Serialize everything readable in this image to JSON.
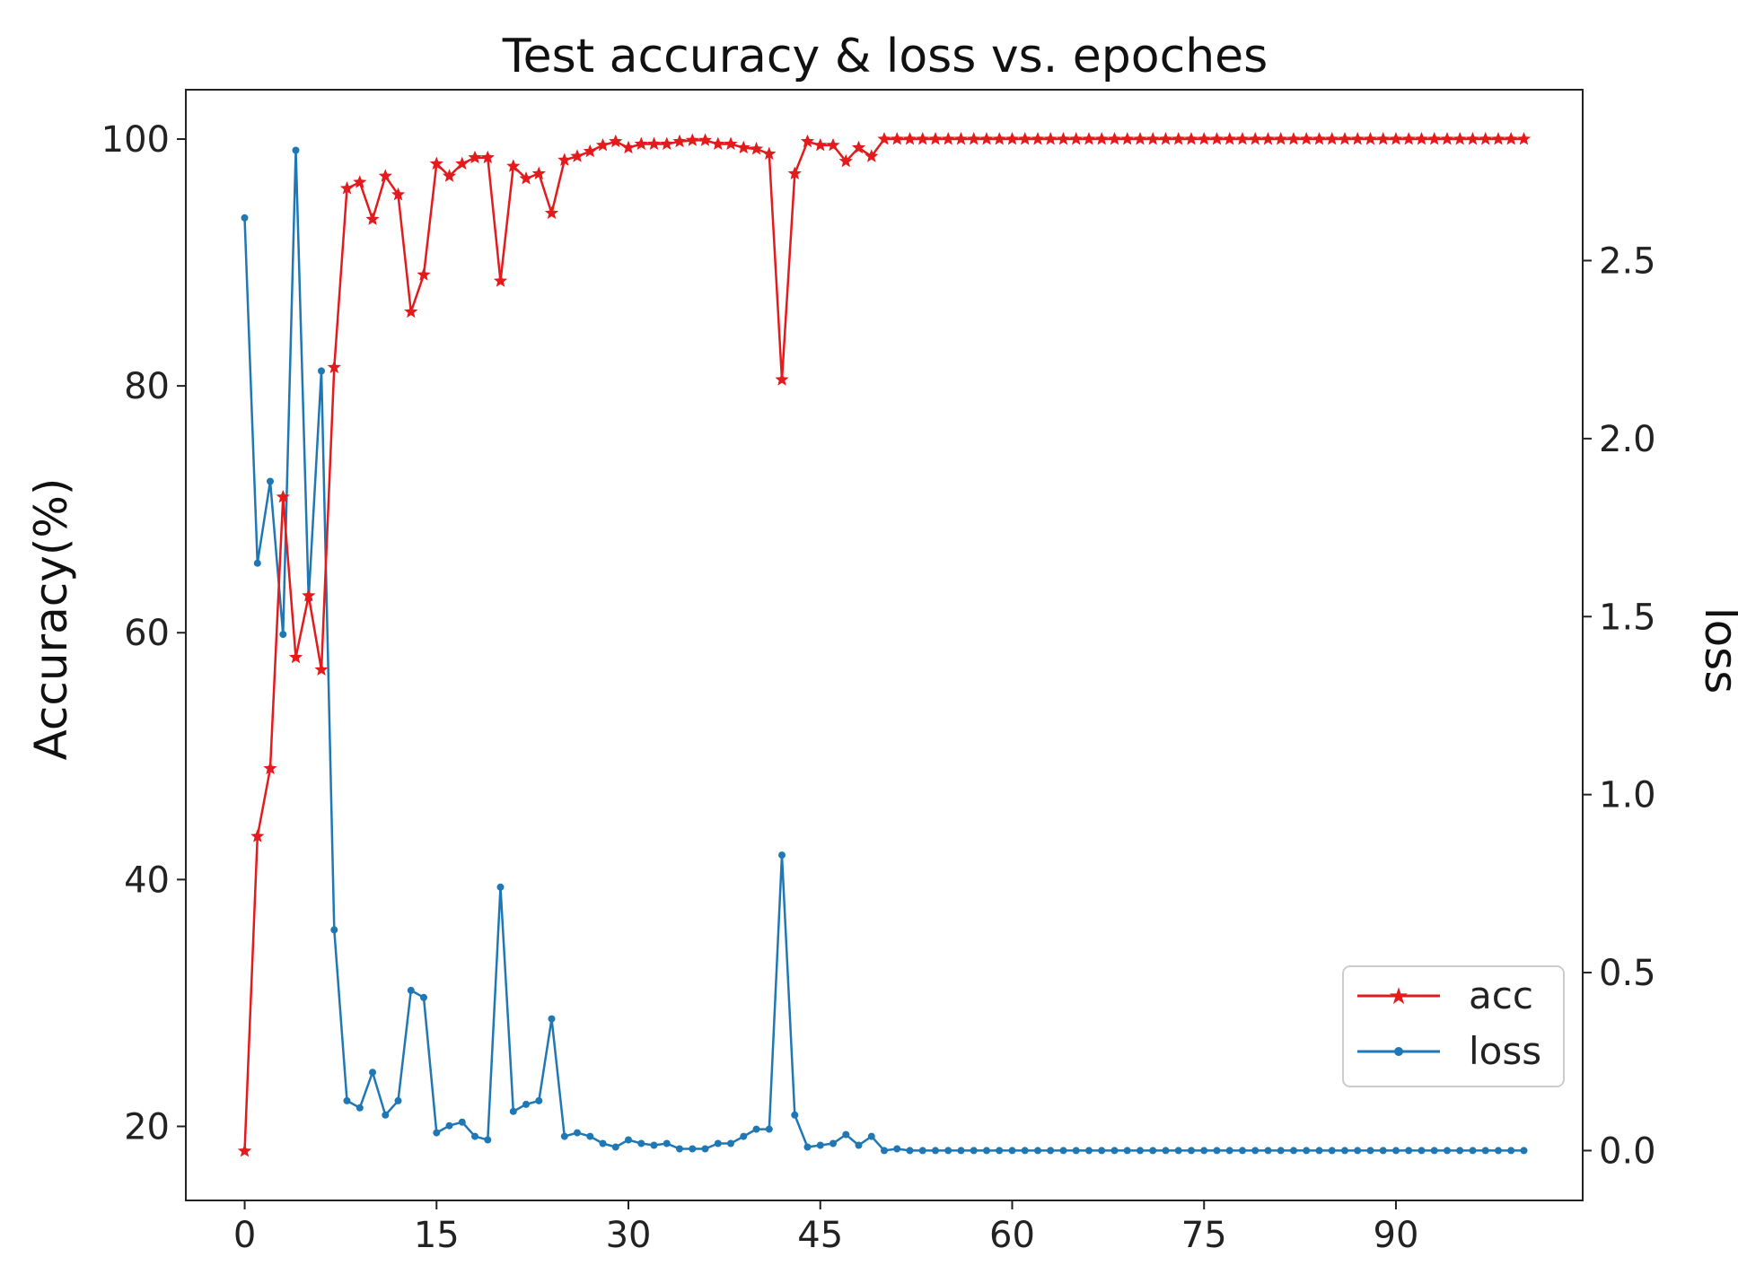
{
  "chart_data": {
    "type": "line",
    "title": "Test accuracy & loss vs. epoches",
    "xlabel": "",
    "ylabel_left": "Accuracy(%)",
    "ylabel_right": "loss",
    "x": [
      0,
      1,
      2,
      3,
      4,
      5,
      6,
      7,
      8,
      9,
      10,
      11,
      12,
      13,
      14,
      15,
      16,
      17,
      18,
      19,
      20,
      21,
      22,
      23,
      24,
      25,
      26,
      27,
      28,
      29,
      30,
      31,
      32,
      33,
      34,
      35,
      36,
      37,
      38,
      39,
      40,
      41,
      42,
      43,
      44,
      45,
      46,
      47,
      48,
      49,
      50,
      51,
      52,
      53,
      54,
      55,
      56,
      57,
      58,
      59,
      60,
      61,
      62,
      63,
      64,
      65,
      66,
      67,
      68,
      69,
      70,
      71,
      72,
      73,
      74,
      75,
      76,
      77,
      78,
      79,
      80,
      81,
      82,
      83,
      84,
      85,
      86,
      87,
      88,
      89,
      90,
      91,
      92,
      93,
      94,
      95,
      96,
      97,
      98,
      99,
      100
    ],
    "xlim": [
      -4.6,
      104.6
    ],
    "xticks": [
      0,
      15,
      30,
      45,
      60,
      75,
      90
    ],
    "ylim_left": [
      14,
      104
    ],
    "yticks_left": [
      20,
      40,
      60,
      80,
      100
    ],
    "ylim_right": [
      -0.14,
      2.98
    ],
    "yticks_right": [
      0.0,
      0.5,
      1.0,
      1.5,
      2.0,
      2.5
    ],
    "legend_position": "lower-right",
    "series": [
      {
        "name": "acc",
        "axis": "left",
        "color": "#e41a1c",
        "marker": "star",
        "values": [
          18.0,
          43.5,
          49.0,
          71.0,
          58.0,
          63.0,
          57.0,
          81.5,
          96.0,
          96.5,
          93.5,
          97.0,
          95.5,
          86.0,
          89.0,
          98.0,
          97.0,
          98.0,
          98.5,
          98.5,
          88.5,
          97.8,
          96.8,
          97.2,
          94.0,
          98.3,
          98.6,
          99.0,
          99.5,
          99.8,
          99.3,
          99.6,
          99.6,
          99.6,
          99.8,
          99.9,
          99.9,
          99.6,
          99.6,
          99.3,
          99.2,
          98.8,
          80.5,
          97.2,
          99.8,
          99.5,
          99.5,
          98.2,
          99.3,
          98.6,
          100,
          100,
          100,
          100,
          100,
          100,
          100,
          100,
          100,
          100,
          100,
          100,
          100,
          100,
          100,
          100,
          100,
          100,
          100,
          100,
          100,
          100,
          100,
          100,
          100,
          100,
          100,
          100,
          100,
          100,
          100,
          100,
          100,
          100,
          100,
          100,
          100,
          100,
          100,
          100,
          100,
          100,
          100,
          100,
          100,
          100,
          100,
          100,
          100,
          100,
          100
        ]
      },
      {
        "name": "loss",
        "axis": "right",
        "color": "#1f77b4",
        "marker": "dot",
        "values": [
          2.62,
          1.65,
          1.88,
          1.45,
          2.81,
          1.55,
          2.19,
          0.62,
          0.14,
          0.12,
          0.22,
          0.1,
          0.14,
          0.45,
          0.43,
          0.05,
          0.07,
          0.08,
          0.04,
          0.03,
          0.74,
          0.11,
          0.13,
          0.14,
          0.37,
          0.04,
          0.05,
          0.04,
          0.02,
          0.01,
          0.03,
          0.02,
          0.015,
          0.02,
          0.005,
          0.005,
          0.005,
          0.02,
          0.02,
          0.04,
          0.06,
          0.06,
          0.83,
          0.1,
          0.01,
          0.015,
          0.02,
          0.045,
          0.015,
          0.04,
          0.0,
          0.005,
          0.0,
          0.0,
          0.0,
          0.0,
          0.0,
          0.0,
          0.0,
          0.0,
          0.0,
          0.0,
          0.0,
          0.0,
          0.0,
          0.0,
          0.0,
          0.0,
          0.0,
          0.0,
          0.0,
          0.0,
          0.0,
          0.0,
          0.0,
          0.0,
          0.0,
          0.0,
          0.0,
          0.0,
          0.0,
          0.0,
          0.0,
          0.0,
          0.0,
          0.0,
          0.0,
          0.0,
          0.0,
          0.0,
          0.0,
          0.0,
          0.0,
          0.0,
          0.0,
          0.0,
          0.0,
          0.0,
          0.0,
          0.0,
          0.0
        ]
      }
    ]
  }
}
